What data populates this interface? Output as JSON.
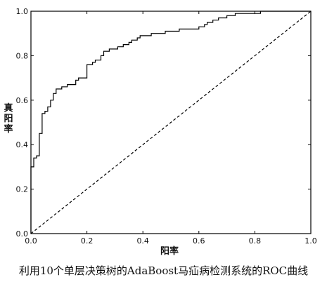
{
  "caption": "利用10个单层决策树的AdaBoost马疝病检测系统的ROC曲线",
  "chart_data": {
    "type": "line",
    "xlabel": "阳率",
    "ylabel": "真阳率",
    "xlim": [
      0.0,
      1.0
    ],
    "ylim": [
      0.0,
      1.0
    ],
    "xticks": [
      "0.0",
      "0.2",
      "0.4",
      "0.6",
      "0.8",
      "1.0"
    ],
    "yticks": [
      "0.0",
      "0.2",
      "0.4",
      "0.6",
      "0.8",
      "1.0"
    ],
    "grid": false,
    "series": [
      {
        "style": "solid-step",
        "color": "#000000",
        "x": [
          0.0,
          0.0,
          0.01,
          0.01,
          0.02,
          0.02,
          0.03,
          0.03,
          0.04,
          0.04,
          0.05,
          0.05,
          0.06,
          0.06,
          0.07,
          0.07,
          0.08,
          0.08,
          0.09,
          0.09,
          0.11,
          0.11,
          0.12,
          0.12,
          0.13,
          0.13,
          0.16,
          0.16,
          0.17,
          0.17,
          0.2,
          0.2,
          0.22,
          0.22,
          0.23,
          0.23,
          0.25,
          0.25,
          0.26,
          0.26,
          0.28,
          0.28,
          0.31,
          0.31,
          0.33,
          0.33,
          0.35,
          0.35,
          0.36,
          0.36,
          0.38,
          0.38,
          0.39,
          0.39,
          0.41,
          0.41,
          0.43,
          0.43,
          0.44,
          0.44,
          0.48,
          0.48,
          0.53,
          0.53,
          0.6,
          0.6,
          0.62,
          0.62,
          0.63,
          0.63,
          0.65,
          0.65,
          0.67,
          0.67,
          0.7,
          0.7,
          0.73,
          0.73,
          0.77,
          0.77,
          0.82,
          0.82,
          0.87,
          0.87,
          0.9,
          0.9,
          0.94,
          0.94,
          1.0
        ],
        "y": [
          0.0,
          0.3,
          0.3,
          0.34,
          0.34,
          0.35,
          0.35,
          0.45,
          0.45,
          0.54,
          0.54,
          0.55,
          0.55,
          0.57,
          0.57,
          0.6,
          0.6,
          0.63,
          0.63,
          0.65,
          0.65,
          0.66,
          0.66,
          0.66,
          0.66,
          0.67,
          0.67,
          0.69,
          0.69,
          0.7,
          0.7,
          0.76,
          0.76,
          0.77,
          0.77,
          0.78,
          0.78,
          0.8,
          0.8,
          0.82,
          0.82,
          0.83,
          0.83,
          0.84,
          0.84,
          0.85,
          0.85,
          0.86,
          0.86,
          0.87,
          0.87,
          0.88,
          0.88,
          0.89,
          0.89,
          0.89,
          0.89,
          0.9,
          0.9,
          0.9,
          0.9,
          0.91,
          0.91,
          0.92,
          0.92,
          0.93,
          0.93,
          0.94,
          0.94,
          0.95,
          0.95,
          0.96,
          0.96,
          0.97,
          0.97,
          0.98,
          0.98,
          0.99,
          0.99,
          0.99,
          0.99,
          1.0,
          1.0,
          1.0,
          1.0,
          1.0,
          1.0,
          1.0,
          1.0
        ]
      },
      {
        "style": "dashed",
        "color": "#000000",
        "x": [
          0.0,
          1.0
        ],
        "y": [
          0.0,
          1.0
        ]
      }
    ]
  }
}
